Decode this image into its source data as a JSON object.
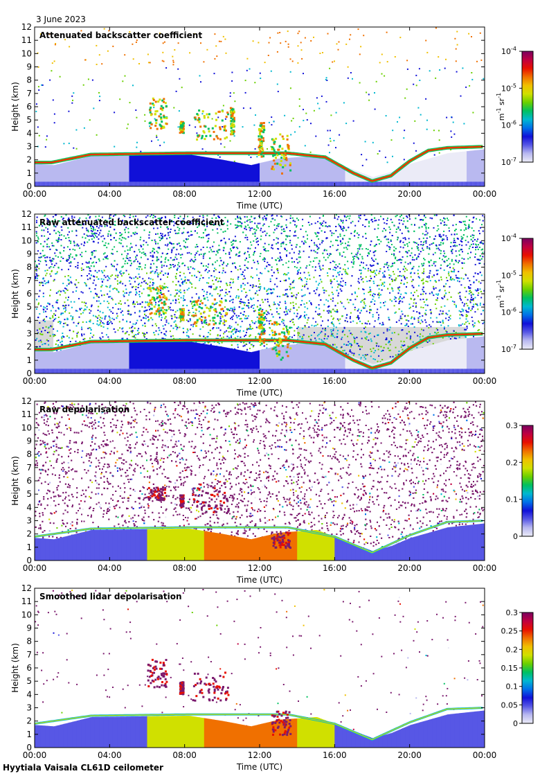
{
  "date_label": "3 June 2023",
  "footer": "Hyytiala Vaisala CL61D ceilometer",
  "colors": {
    "scale": [
      "#ebebf7",
      "#b9b9f0",
      "#5757e5",
      "#1010d8",
      "#0070e8",
      "#00b8d0",
      "#00c060",
      "#6ad000",
      "#d0e000",
      "#f0c000",
      "#f07000",
      "#e81000",
      "#c00040",
      "#7a0060"
    ],
    "background_grey": "#d8d8d8",
    "depol_high": "#7b1a6e"
  },
  "chart_data": [
    {
      "type": "heatmap",
      "title": "Attenuated backscatter coefficient",
      "xlabel": "Time (UTC)",
      "ylabel": "Height (km)",
      "x_ticks": [
        "00:00",
        "04:00",
        "08:00",
        "12:00",
        "16:00",
        "20:00",
        "00:00"
      ],
      "y_ticks": [
        "0",
        "1",
        "2",
        "3",
        "4",
        "5",
        "6",
        "7",
        "8",
        "9",
        "10",
        "11",
        "12"
      ],
      "xlim": [
        0,
        24
      ],
      "ylim": [
        0,
        12
      ],
      "colorbar": {
        "scale": "log",
        "range": [
          1e-07,
          0.0001
        ],
        "ticks": [
          {
            "base": "10",
            "exp": "-7"
          },
          {
            "base": "10",
            "exp": "-6"
          },
          {
            "base": "10",
            "exp": "-5"
          },
          {
            "base": "10",
            "exp": "-4"
          }
        ],
        "label": {
          "base": "m",
          "exp1": "-1",
          "mid": "sr",
          "exp2": "-1"
        }
      },
      "noise_density": 0.05,
      "boundary_layer_top_km": [
        [
          0,
          1.7
        ],
        [
          1,
          1.6
        ],
        [
          3,
          2.3
        ],
        [
          8.2,
          2.4
        ],
        [
          10,
          2.0
        ],
        [
          11.5,
          1.6
        ],
        [
          13,
          2.1
        ],
        [
          15,
          2.3
        ],
        [
          16.5,
          1.5
        ],
        [
          18,
          0.7
        ],
        [
          19,
          1.1
        ],
        [
          20,
          1.7
        ],
        [
          22,
          2.5
        ],
        [
          24,
          2.8
        ]
      ],
      "cloud_top_layer_km": [
        [
          0,
          1.8
        ],
        [
          0.9,
          1.8
        ],
        [
          3,
          2.4
        ],
        [
          8.2,
          2.5
        ],
        [
          13.5,
          2.5
        ],
        [
          15.5,
          2.2
        ],
        [
          17,
          1.0
        ],
        [
          18,
          0.4
        ],
        [
          19,
          0.8
        ],
        [
          20,
          1.9
        ],
        [
          21,
          2.7
        ],
        [
          22,
          2.9
        ],
        [
          24,
          3.0
        ]
      ],
      "cloud_patches": [
        {
          "t0": 6.0,
          "t1": 7.0,
          "h0": 4.4,
          "h1": 6.7
        },
        {
          "t0": 7.7,
          "t1": 7.9,
          "h0": 4.1,
          "h1": 5.0
        },
        {
          "t0": 8.4,
          "t1": 10.3,
          "h0": 3.6,
          "h1": 5.8
        },
        {
          "t0": 10.4,
          "t1": 10.6,
          "h0": 4.0,
          "h1": 6.0
        },
        {
          "t0": 11.9,
          "t1": 12.2,
          "h0": 2.2,
          "h1": 5.0
        },
        {
          "t0": 12.6,
          "t1": 13.6,
          "h0": 1.0,
          "h1": 4.0
        }
      ]
    },
    {
      "type": "heatmap",
      "title": "Raw attenuated backscatter coefficient",
      "xlabel": "Time (UTC)",
      "ylabel": "Height (km)",
      "x_ticks": [
        "00:00",
        "04:00",
        "08:00",
        "12:00",
        "16:00",
        "20:00",
        "00:00"
      ],
      "y_ticks": [
        "0",
        "1",
        "2",
        "3",
        "4",
        "5",
        "6",
        "7",
        "8",
        "9",
        "10",
        "11",
        "12"
      ],
      "xlim": [
        0,
        24
      ],
      "ylim": [
        0,
        12
      ],
      "colorbar": {
        "scale": "log",
        "range": [
          1e-07,
          0.0001
        ],
        "ticks": [
          {
            "base": "10",
            "exp": "-7"
          },
          {
            "base": "10",
            "exp": "-6"
          },
          {
            "base": "10",
            "exp": "-5"
          },
          {
            "base": "10",
            "exp": "-4"
          }
        ],
        "label": {
          "base": "m",
          "exp1": "-1",
          "mid": "sr",
          "exp2": "-1"
        }
      },
      "noise_density": 0.7,
      "boundary_layer_top_km": [
        [
          0,
          1.7
        ],
        [
          1,
          1.6
        ],
        [
          3,
          2.3
        ],
        [
          8.2,
          2.4
        ],
        [
          10,
          2.0
        ],
        [
          11.5,
          1.6
        ],
        [
          13,
          2.1
        ],
        [
          15,
          2.3
        ],
        [
          16.5,
          1.5
        ],
        [
          18,
          0.7
        ],
        [
          19,
          1.1
        ],
        [
          20,
          1.7
        ],
        [
          22,
          2.5
        ],
        [
          24,
          2.8
        ]
      ],
      "cloud_top_layer_km": [
        [
          0,
          1.8
        ],
        [
          0.9,
          1.8
        ],
        [
          3,
          2.4
        ],
        [
          8.2,
          2.5
        ],
        [
          13.5,
          2.5
        ],
        [
          15.5,
          2.2
        ],
        [
          17,
          1.0
        ],
        [
          18,
          0.4
        ],
        [
          19,
          0.8
        ],
        [
          20,
          1.9
        ],
        [
          21,
          2.7
        ],
        [
          22,
          2.9
        ],
        [
          24,
          3.0
        ]
      ],
      "cloud_patches": [
        {
          "t0": 6.0,
          "t1": 7.0,
          "h0": 4.4,
          "h1": 6.7
        },
        {
          "t0": 7.7,
          "t1": 7.9,
          "h0": 4.1,
          "h1": 5.0
        },
        {
          "t0": 8.4,
          "t1": 10.3,
          "h0": 3.6,
          "h1": 5.8
        },
        {
          "t0": 11.9,
          "t1": 12.2,
          "h0": 2.2,
          "h1": 5.0
        },
        {
          "t0": 12.6,
          "t1": 13.6,
          "h0": 1.0,
          "h1": 4.0
        }
      ]
    },
    {
      "type": "heatmap",
      "title": "Raw depolarisation",
      "xlabel": "Time (UTC)",
      "ylabel": "Height (km)",
      "x_ticks": [
        "00:00",
        "04:00",
        "08:00",
        "12:00",
        "16:00",
        "20:00",
        "00:00"
      ],
      "y_ticks": [
        "0",
        "1",
        "2",
        "3",
        "4",
        "5",
        "6",
        "7",
        "8",
        "9",
        "10",
        "11",
        "12"
      ],
      "xlim": [
        0,
        24
      ],
      "ylim": [
        0,
        12
      ],
      "colorbar": {
        "scale": "linear",
        "range": [
          0,
          0.3
        ],
        "ticks": [
          "0",
          "0.1",
          "0.2",
          "0.3"
        ]
      },
      "noise_density": 0.85,
      "boundary_layer_top_km": [
        [
          0,
          1.7
        ],
        [
          1,
          1.6
        ],
        [
          3,
          2.3
        ],
        [
          8.2,
          2.4
        ],
        [
          10,
          2.0
        ],
        [
          11.5,
          1.6
        ],
        [
          13,
          2.1
        ],
        [
          15,
          2.3
        ],
        [
          16.5,
          1.5
        ],
        [
          18,
          0.7
        ],
        [
          19,
          1.1
        ],
        [
          20,
          1.7
        ],
        [
          22,
          2.5
        ],
        [
          24,
          2.8
        ]
      ],
      "cloud_top_layer_km": [
        [
          0,
          1.8
        ],
        [
          3,
          2.4
        ],
        [
          8.2,
          2.5
        ],
        [
          13.5,
          2.5
        ],
        [
          16,
          1.8
        ],
        [
          18,
          0.6
        ],
        [
          20,
          1.9
        ],
        [
          22,
          2.9
        ],
        [
          24,
          3.0
        ]
      ],
      "cloud_patches": [
        {
          "t0": 6.0,
          "t1": 7.0,
          "h0": 4.6,
          "h1": 5.6
        },
        {
          "t0": 7.7,
          "t1": 7.9,
          "h0": 4.1,
          "h1": 5.0
        },
        {
          "t0": 8.4,
          "t1": 10.3,
          "h0": 3.6,
          "h1": 5.8
        },
        {
          "t0": 12.6,
          "t1": 13.6,
          "h0": 1.0,
          "h1": 2.2
        }
      ]
    },
    {
      "type": "heatmap",
      "title": "Smoothed lidar depolarisation",
      "xlabel": "Time (UTC)",
      "ylabel": "Height (km)",
      "x_ticks": [
        "00:00",
        "04:00",
        "08:00",
        "12:00",
        "16:00",
        "20:00",
        "00:00"
      ],
      "y_ticks": [
        "0",
        "1",
        "2",
        "3",
        "4",
        "5",
        "6",
        "7",
        "8",
        "9",
        "10",
        "11",
        "12"
      ],
      "xlim": [
        0,
        24
      ],
      "ylim": [
        0,
        12
      ],
      "colorbar": {
        "scale": "linear",
        "range": [
          0,
          0.3
        ],
        "ticks": [
          "0",
          "0.05",
          "0.1",
          "0.15",
          "0.2",
          "0.25",
          "0.3"
        ]
      },
      "noise_density": 0.03,
      "boundary_layer_top_km": [
        [
          0,
          1.7
        ],
        [
          1,
          1.6
        ],
        [
          3,
          2.3
        ],
        [
          8.2,
          2.4
        ],
        [
          10,
          2.0
        ],
        [
          11.5,
          1.6
        ],
        [
          13,
          2.1
        ],
        [
          15,
          2.3
        ],
        [
          16.5,
          1.5
        ],
        [
          18,
          0.7
        ],
        [
          19,
          1.1
        ],
        [
          20,
          1.7
        ],
        [
          22,
          2.5
        ],
        [
          24,
          2.8
        ]
      ],
      "cloud_top_layer_km": [
        [
          0,
          1.8
        ],
        [
          3,
          2.4
        ],
        [
          8.2,
          2.5
        ],
        [
          13.5,
          2.5
        ],
        [
          16,
          1.8
        ],
        [
          18,
          0.6
        ],
        [
          20,
          1.9
        ],
        [
          22,
          2.9
        ],
        [
          24,
          3.0
        ]
      ],
      "cloud_patches": [
        {
          "t0": 6.0,
          "t1": 7.0,
          "h0": 4.6,
          "h1": 6.7
        },
        {
          "t0": 7.7,
          "t1": 7.9,
          "h0": 4.1,
          "h1": 5.0
        },
        {
          "t0": 8.4,
          "t1": 10.3,
          "h0": 3.6,
          "h1": 5.8
        },
        {
          "t0": 12.6,
          "t1": 13.6,
          "h0": 1.0,
          "h1": 2.8
        }
      ]
    }
  ]
}
